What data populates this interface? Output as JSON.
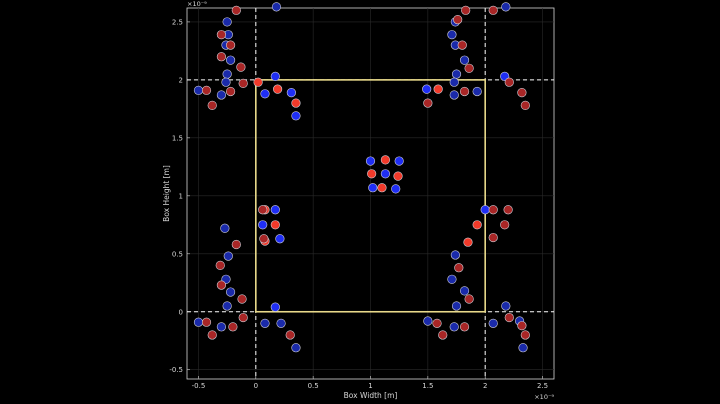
{
  "chart_data": {
    "type": "scatter",
    "title": "",
    "xlabel": "Box Width  [m]",
    "ylabel": "Box Height  [m]",
    "x_exponent": "×10⁻⁹",
    "y_exponent": "×10⁻⁹",
    "xlim": [
      -0.6,
      2.6
    ],
    "ylim": [
      -0.58,
      2.62
    ],
    "xticks": [
      -0.5,
      0,
      0.5,
      1,
      1.5,
      2,
      2.5
    ],
    "xtick_labels": [
      "-0.5",
      "0",
      "0.5",
      "1",
      "1.5",
      "2",
      "2.5"
    ],
    "yticks": [
      -0.5,
      0,
      0.5,
      1,
      1.5,
      2,
      2.5
    ],
    "ytick_labels": [
      "-0.5",
      "0",
      "0.5",
      "1",
      "1.5",
      "2",
      "2.5"
    ],
    "grid": true,
    "box": {
      "x": [
        0,
        2
      ],
      "y": [
        0,
        2
      ],
      "color": "#e8d98a"
    },
    "boundary_lines": {
      "x": [
        0,
        2
      ],
      "y": [
        0,
        2
      ],
      "style": "dashed",
      "color": "#ffffff"
    },
    "colors": {
      "blue": "#1f2ef5",
      "red": "#f23a2a",
      "blue_faded": "#1a2aaa",
      "red_faded": "#a82626",
      "axis": "#d8d8d8",
      "grid": "#2a2a2a"
    },
    "series": [
      {
        "color_key": "blue",
        "points": [
          [
            1.0,
            1.3
          ],
          [
            1.25,
            1.3
          ],
          [
            1.13,
            1.19
          ],
          [
            1.02,
            1.07
          ],
          [
            1.22,
            1.06
          ],
          [
            0.08,
            1.88
          ],
          [
            0.31,
            1.89
          ],
          [
            0.35,
            1.69
          ],
          [
            0.17,
            2.03
          ],
          [
            0.17,
            0.88
          ],
          [
            0.06,
            0.75
          ],
          [
            0.21,
            0.63
          ],
          [
            0.17,
            0.04
          ],
          [
            1.49,
            1.92
          ],
          [
            2.17,
            2.03
          ],
          [
            2.0,
            0.88
          ]
        ]
      },
      {
        "color_key": "red",
        "points": [
          [
            1.13,
            1.31
          ],
          [
            1.01,
            1.19
          ],
          [
            1.24,
            1.17
          ],
          [
            1.1,
            1.07
          ],
          [
            0.02,
            1.98
          ],
          [
            0.19,
            1.92
          ],
          [
            0.35,
            1.8
          ],
          [
            0.08,
            0.88
          ],
          [
            0.17,
            0.75
          ],
          [
            0.08,
            0.61
          ],
          [
            1.59,
            1.92
          ],
          [
            1.93,
            0.75
          ],
          [
            1.85,
            0.6
          ]
        ]
      },
      {
        "color_key": "blue_faded",
        "points": [
          [
            2.18,
            2.63
          ],
          [
            -0.22,
            2.17
          ],
          [
            -0.25,
            2.05
          ],
          [
            -0.26,
            1.98
          ],
          [
            -0.5,
            1.91
          ],
          [
            -0.3,
            1.87
          ],
          [
            -0.26,
            2.3
          ],
          [
            -0.24,
            2.39
          ],
          [
            -0.25,
            2.5
          ],
          [
            1.74,
            2.5
          ],
          [
            1.71,
            2.39
          ],
          [
            1.74,
            2.3
          ],
          [
            1.82,
            2.17
          ],
          [
            1.75,
            2.05
          ],
          [
            1.73,
            1.98
          ],
          [
            1.93,
            1.9
          ],
          [
            1.73,
            1.87
          ],
          [
            0.18,
            2.63
          ],
          [
            0.22,
            -0.1
          ],
          [
            0.35,
            -0.31
          ],
          [
            0.08,
            -0.1
          ],
          [
            -0.22,
            0.17
          ],
          [
            -0.25,
            0.05
          ],
          [
            -0.5,
            -0.09
          ],
          [
            -0.3,
            -0.13
          ],
          [
            -0.26,
            0.28
          ],
          [
            -0.24,
            0.48
          ],
          [
            -0.27,
            0.72
          ],
          [
            1.74,
            0.49
          ],
          [
            1.71,
            0.28
          ],
          [
            1.82,
            0.18
          ],
          [
            1.75,
            0.05
          ],
          [
            1.5,
            -0.08
          ],
          [
            1.73,
            -0.13
          ],
          [
            2.18,
            0.05
          ],
          [
            2.3,
            -0.08
          ],
          [
            2.33,
            -0.31
          ],
          [
            2.07,
            -0.1
          ]
        ]
      },
      {
        "color_key": "red_faded",
        "points": [
          [
            -0.17,
            2.6
          ],
          [
            -0.3,
            2.39
          ],
          [
            -0.22,
            2.3
          ],
          [
            -0.3,
            2.2
          ],
          [
            -0.13,
            2.11
          ],
          [
            -0.43,
            1.91
          ],
          [
            -0.38,
            1.78
          ],
          [
            -0.22,
            1.9
          ],
          [
            -0.11,
            1.97
          ],
          [
            1.83,
            2.6
          ],
          [
            1.76,
            2.52
          ],
          [
            1.8,
            2.3
          ],
          [
            1.86,
            2.1
          ],
          [
            1.5,
            1.8
          ],
          [
            1.82,
            1.9
          ],
          [
            2.21,
            1.98
          ],
          [
            2.32,
            1.89
          ],
          [
            2.35,
            1.78
          ],
          [
            2.07,
            2.6
          ],
          [
            -0.17,
            0.58
          ],
          [
            -0.31,
            0.4
          ],
          [
            -0.3,
            0.23
          ],
          [
            -0.12,
            0.11
          ],
          [
            -0.43,
            -0.09
          ],
          [
            -0.38,
            -0.2
          ],
          [
            -0.2,
            -0.13
          ],
          [
            -0.11,
            -0.05
          ],
          [
            0.3,
            -0.2
          ],
          [
            0.07,
            0.63
          ],
          [
            0.06,
            0.88
          ],
          [
            1.77,
            0.38
          ],
          [
            1.86,
            0.11
          ],
          [
            1.63,
            -0.2
          ],
          [
            1.58,
            -0.1
          ],
          [
            1.82,
            -0.13
          ],
          [
            2.21,
            -0.05
          ],
          [
            2.32,
            -0.12
          ],
          [
            2.35,
            -0.2
          ],
          [
            2.07,
            0.88
          ],
          [
            2.2,
            0.88
          ],
          [
            2.17,
            0.75
          ],
          [
            2.07,
            0.64
          ]
        ]
      }
    ]
  }
}
